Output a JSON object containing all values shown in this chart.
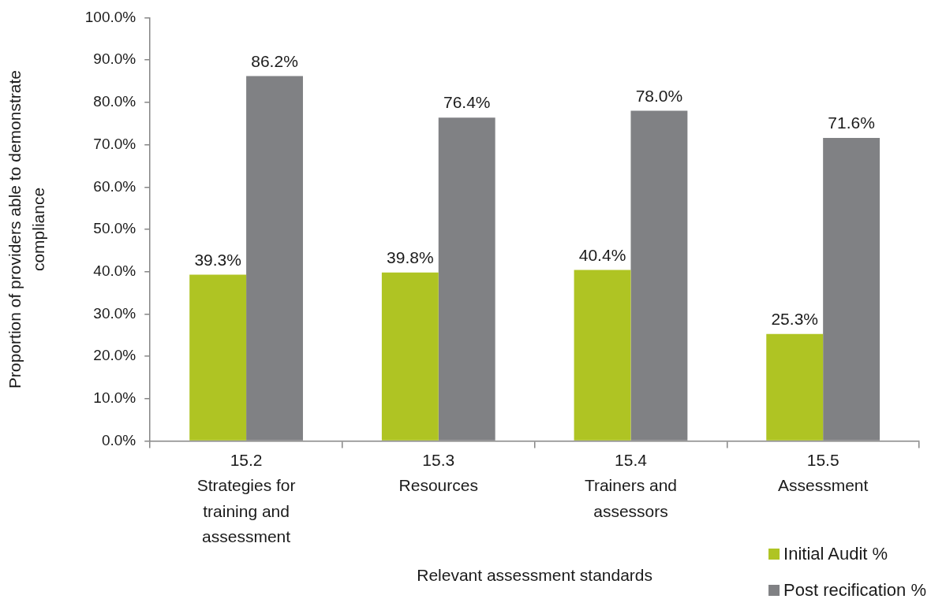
{
  "chart_data": {
    "type": "bar",
    "xlabel": "Relevant assessment standards",
    "ylabel": "Proportion of providers able to demonstrate\ncompliance",
    "categories": [
      "15.2\nStrategies for\ntraining and\nassessment",
      "15.3\nResources",
      "15.4\nTrainers and\nassessors",
      "15.5\nAssessment"
    ],
    "series": [
      {
        "name": "Initial Audit %",
        "color": "#afc423",
        "values": [
          39.3,
          39.8,
          40.4,
          25.3
        ],
        "value_labels": [
          "39.3%",
          "39.8%",
          "40.4%",
          "25.3%"
        ]
      },
      {
        "name": "Post recification %",
        "color": "#808184",
        "values": [
          86.2,
          76.4,
          78.0,
          71.6
        ],
        "value_labels": [
          "86.2%",
          "76.4%",
          "78.0%",
          "71.6%"
        ]
      }
    ],
    "ylim": [
      0,
      100
    ],
    "yticks": [
      {
        "value": 0,
        "label": "0.0%"
      },
      {
        "value": 10,
        "label": "10.0%"
      },
      {
        "value": 20,
        "label": "20.0%"
      },
      {
        "value": 30,
        "label": "30.0%"
      },
      {
        "value": 40,
        "label": "40.0%"
      },
      {
        "value": 50,
        "label": "50.0%"
      },
      {
        "value": 60,
        "label": "60.0%"
      },
      {
        "value": 70,
        "label": "70.0%"
      },
      {
        "value": 80,
        "label": "80.0%"
      },
      {
        "value": 90,
        "label": "90.0%"
      },
      {
        "value": 100,
        "label": "100.0%"
      }
    ],
    "grid": false,
    "legend": "bottom right"
  }
}
